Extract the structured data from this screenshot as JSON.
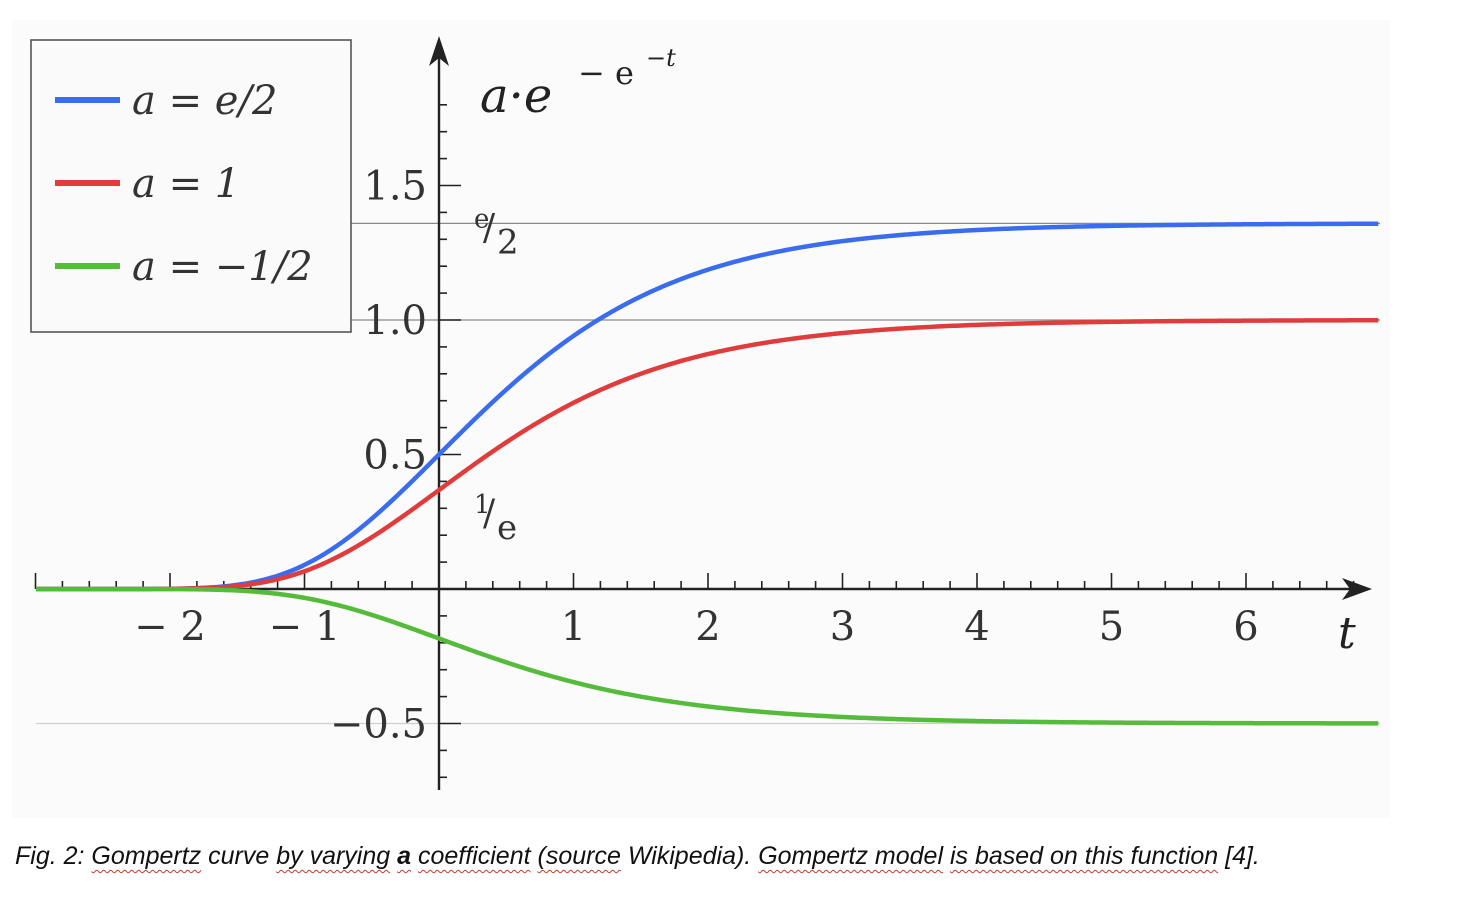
{
  "chart_data": {
    "type": "line",
    "function_label": {
      "base": "a·e",
      "exp1": "− e",
      "exp2": "−t"
    },
    "xlabel": "t",
    "xlim": [
      -3,
      7
    ],
    "ylim": [
      -0.8,
      1.95
    ],
    "x_ticks": [
      -2,
      -1,
      1,
      2,
      3,
      4,
      5,
      6
    ],
    "x_tick_labels": [
      "− 2",
      "− 1",
      "1",
      "2",
      "3",
      "4",
      "5",
      "6"
    ],
    "y_ticks": [
      1.5,
      1.0,
      0.5,
      -0.5
    ],
    "y_tick_labels": [
      "1.5",
      "1.0",
      "0.5",
      "−0.5"
    ],
    "reference_lines": [
      1.35914,
      1.0,
      -0.5
    ],
    "annotations": [
      {
        "label_num": "e",
        "label_den": "2",
        "y": 1.35914
      },
      {
        "label_num": "1",
        "label_den": "e",
        "y": 0.36788
      }
    ],
    "series": [
      {
        "name": "a = e/2",
        "a": 1.35914,
        "color": "#3a6cf0"
      },
      {
        "name": "a = 1",
        "a": 1.0,
        "color": "#e03c3c"
      },
      {
        "name": "a = −1/2",
        "a": -0.5,
        "color": "#55bb3a"
      }
    ],
    "grid": false,
    "legend": "top-left"
  },
  "legend": {
    "items": [
      {
        "label": "a = e/2",
        "color": "#3a6cf0"
      },
      {
        "label": "a = 1",
        "color": "#e03c3c"
      },
      {
        "label": "a = −1/2",
        "color": "#55bb3a"
      }
    ]
  },
  "caption": {
    "prefix": "Fig. 2: ",
    "w1": "Gompertz",
    "t1": " curve ",
    "w2": "by varying",
    "t2": " ",
    "w3": "a",
    "t3": " ",
    "w4": "coefficient",
    "t4": " ",
    "w5": "(source",
    "t5": " Wikipedia). ",
    "w6": "Gompertz model",
    "t6": " ",
    "w7": "is based on this function",
    "t7": " [4]."
  }
}
